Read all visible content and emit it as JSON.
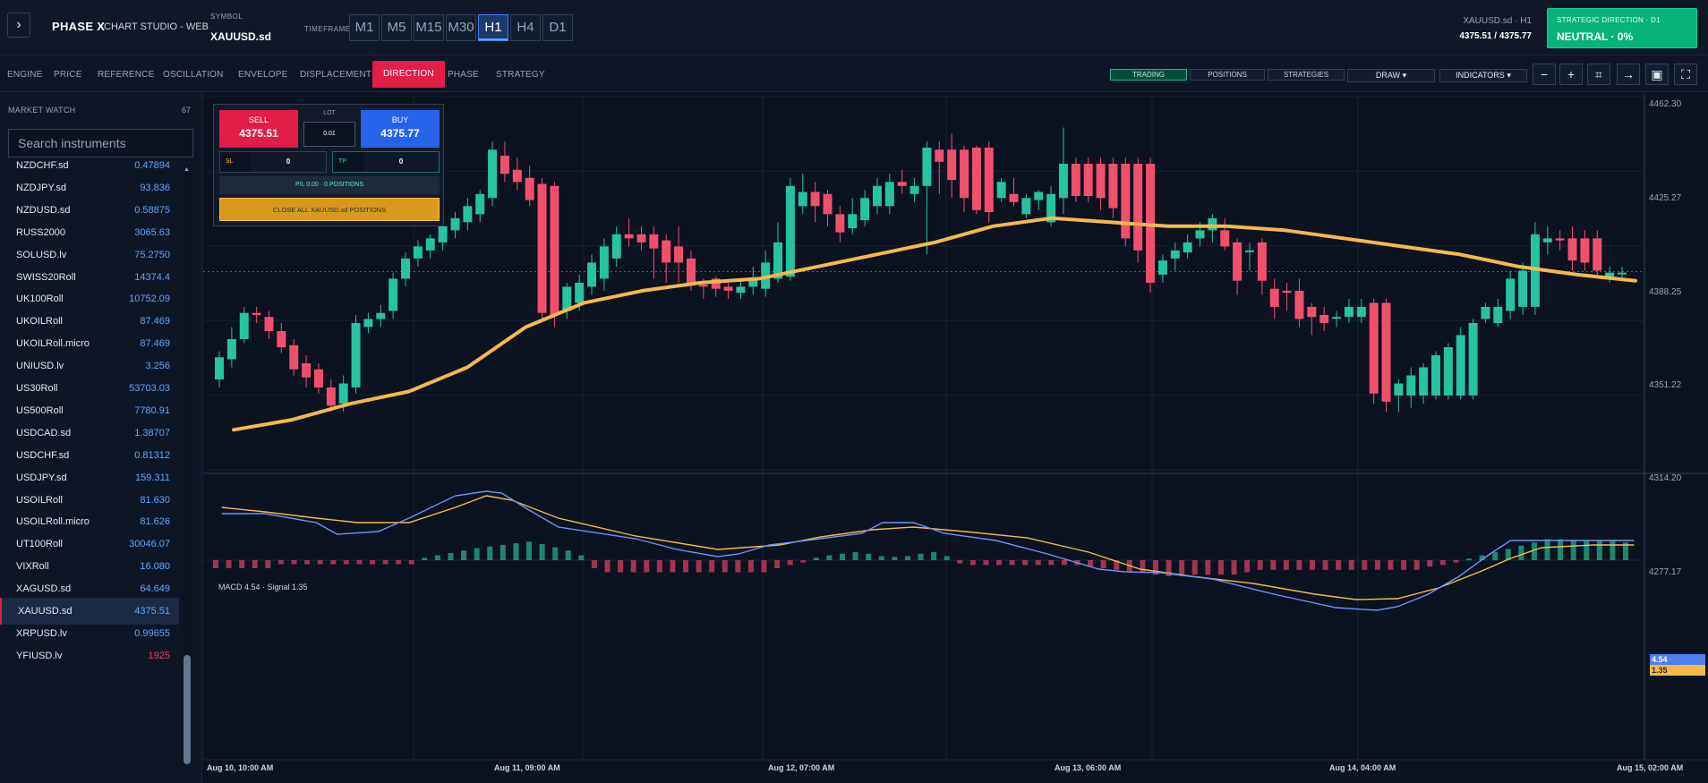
{
  "header": {
    "brand": "PHASE X",
    "subtitle": "CHART STUDIO - WEB",
    "symbol_label": "SYMBOL",
    "symbol": "XAUUSD.sd",
    "timeframe_label": "TIMEFRAME",
    "timeframes": [
      "M1",
      "M5",
      "M15",
      "M30",
      "H1",
      "H4",
      "D1"
    ],
    "active_timeframe": "H1",
    "symbol_desc": "XAUUSD.sd · H1",
    "bid_ask": "4375.51 / 4375.77",
    "strategic_label": "STRATEGIC DIRECTION · D1",
    "strategic_value": "NEUTRAL · 0%"
  },
  "nav": {
    "items": [
      "ENGINE",
      "PRICE",
      "REFERENCE",
      "OSCILLATION",
      "ENVELOPE",
      "DISPLACEMENT",
      "DIRECTION",
      "PHASE",
      "STRATEGY"
    ],
    "active": "DIRECTION",
    "trading": "TRADING",
    "positions": "POSITIONS",
    "strategies": "STRATEGIES",
    "draw": "DRAW",
    "indicators": "INDICATORS",
    "tool_icons": [
      "minus-icon",
      "plus-icon",
      "crop-icon",
      "arrow-right-icon",
      "save-icon",
      "fullscreen-icon"
    ]
  },
  "sidebar": {
    "title": "MARKET WATCH",
    "count": "67",
    "search_placeholder": "Search instruments",
    "instruments": [
      {
        "name": "NZDCHF.sd",
        "price": "0.47894"
      },
      {
        "name": "NZDJPY.sd",
        "price": "93.836"
      },
      {
        "name": "NZDUSD.sd",
        "price": "0.58875"
      },
      {
        "name": "RUSS2000",
        "price": "3065.63"
      },
      {
        "name": "SOLUSD.lv",
        "price": "75.2750"
      },
      {
        "name": "SWISS20Roll",
        "price": "14374.4"
      },
      {
        "name": "UK100Roll",
        "price": "10752.09"
      },
      {
        "name": "UKOILRoll",
        "price": "87.469"
      },
      {
        "name": "UKOILRoll.micro",
        "price": "87.469"
      },
      {
        "name": "UNIUSD.lv",
        "price": "3.256"
      },
      {
        "name": "US30Roll",
        "price": "53703.03"
      },
      {
        "name": "US500Roll",
        "price": "7780.91"
      },
      {
        "name": "USDCAD.sd",
        "price": "1.38707"
      },
      {
        "name": "USDCHF.sd",
        "price": "0.81312"
      },
      {
        "name": "USDJPY.sd",
        "price": "159.311"
      },
      {
        "name": "USOILRoll",
        "price": "81.630"
      },
      {
        "name": "USOILRoll.micro",
        "price": "81.626"
      },
      {
        "name": "UT100Roll",
        "price": "30046.07"
      },
      {
        "name": "VIXRoll",
        "price": "16.080"
      },
      {
        "name": "XAGUSD.sd",
        "price": "64.649"
      },
      {
        "name": "XAUUSD.sd",
        "price": "4375.51"
      },
      {
        "name": "XRPUSD.lv",
        "price": "0.99655"
      },
      {
        "name": "YFIUSD.lv",
        "price": "1925"
      }
    ],
    "selected_index": 20
  },
  "trade_panel": {
    "sell_label": "SELL",
    "sell_price": "4375.51",
    "buy_label": "BUY",
    "buy_price": "4375.77",
    "lot_label": "LOT",
    "lot_value": "0.01",
    "sl_label": "SL",
    "sl_value": "0",
    "tp_label": "TP",
    "tp_value": "0",
    "pl_text": "P/L 0.00 · 0 POSITIONS",
    "close_all": "CLOSE ALL XAUUSD.sd POSITIONS"
  },
  "chart_data": {
    "type": "candlestick",
    "ylim": [
      4277.17,
      4462.3
    ],
    "y_ticks": [
      "4462.30",
      "4425.27",
      "4388.25",
      "4351.22",
      "4314.20",
      "4277.17"
    ],
    "x_ticks": [
      "Aug 10, 10:00 AM",
      "Aug 11, 09:00 AM",
      "Aug 12, 07:00 AM",
      "Aug 13, 06:00 AM",
      "Aug 14, 04:00 AM",
      "Aug 15, 02:00 AM"
    ],
    "current_price": 4375.51,
    "colors": {
      "up": "#26c3a0",
      "down": "#f0506e",
      "ma": "#f5b94a"
    },
    "candles": [
      [
        4322,
        4333,
        4318,
        4336
      ],
      [
        4332,
        4342,
        4328,
        4348
      ],
      [
        4342,
        4355,
        4340,
        4358
      ],
      [
        4355,
        4354,
        4350,
        4358
      ],
      [
        4353,
        4346,
        4342,
        4356
      ],
      [
        4346,
        4338,
        4335,
        4350
      ],
      [
        4339,
        4327,
        4324,
        4342
      ],
      [
        4330,
        4323,
        4318,
        4334
      ],
      [
        4327,
        4318,
        4315,
        4330
      ],
      [
        4318,
        4309,
        4306,
        4322
      ],
      [
        4310,
        4320,
        4306,
        4324
      ],
      [
        4318,
        4350,
        4315,
        4354
      ],
      [
        4348,
        4352,
        4345,
        4355
      ],
      [
        4352,
        4355,
        4348,
        4359
      ],
      [
        4356,
        4372,
        4352,
        4375
      ],
      [
        4372,
        4382,
        4368,
        4385
      ],
      [
        4382,
        4388,
        4378,
        4391
      ],
      [
        4386,
        4392,
        4382,
        4394
      ],
      [
        4390,
        4398,
        4386,
        4400
      ],
      [
        4396,
        4402,
        4392,
        4405
      ],
      [
        4400,
        4408,
        4396,
        4412
      ],
      [
        4404,
        4414,
        4400,
        4416
      ],
      [
        4412,
        4436,
        4408,
        4440
      ],
      [
        4433,
        4424,
        4420,
        4440
      ],
      [
        4426,
        4420,
        4416,
        4432
      ],
      [
        4422,
        4411,
        4408,
        4428
      ],
      [
        4419,
        4355,
        4352,
        4422
      ],
      [
        4418,
        4354,
        4348,
        4420
      ],
      [
        4356,
        4368,
        4352,
        4370
      ],
      [
        4360,
        4370,
        4356,
        4374
      ],
      [
        4368,
        4380,
        4364,
        4384
      ],
      [
        4372,
        4388,
        4366,
        4392
      ],
      [
        4382,
        4394,
        4378,
        4398
      ],
      [
        4394,
        4392,
        4388,
        4402
      ],
      [
        4394,
        4390,
        4386,
        4398
      ],
      [
        4394,
        4387,
        4372,
        4398
      ],
      [
        4391,
        4380,
        4370,
        4394
      ],
      [
        4388,
        4380,
        4370,
        4398
      ],
      [
        4382,
        4369,
        4366,
        4386
      ],
      [
        4369,
        4368,
        4362,
        4372
      ],
      [
        4372,
        4367,
        4363,
        4373
      ],
      [
        4368,
        4366,
        4362,
        4370
      ],
      [
        4365,
        4368,
        4362,
        4372
      ],
      [
        4368,
        4372,
        4364,
        4378
      ],
      [
        4367,
        4380,
        4363,
        4386
      ],
      [
        4372,
        4390,
        4370,
        4400
      ],
      [
        4373,
        4418,
        4371,
        4422
      ],
      [
        4408,
        4415,
        4404,
        4424
      ],
      [
        4415,
        4408,
        4400,
        4420
      ],
      [
        4414,
        4404,
        4398,
        4416
      ],
      [
        4404,
        4395,
        4390,
        4408
      ],
      [
        4397,
        4404,
        4394,
        4412
      ],
      [
        4401,
        4412,
        4398,
        4416
      ],
      [
        4408,
        4418,
        4404,
        4422
      ],
      [
        4408,
        4420,
        4404,
        4424
      ],
      [
        4420,
        4418,
        4414,
        4426
      ],
      [
        4414,
        4418,
        4410,
        4422
      ],
      [
        4418,
        4437,
        4384,
        4440
      ],
      [
        4436,
        4430,
        4414,
        4440
      ],
      [
        4436,
        4421,
        4412,
        4444
      ],
      [
        4436,
        4412,
        4405,
        4438
      ],
      [
        4437,
        4406,
        4404,
        4438
      ],
      [
        4437,
        4405,
        4400,
        4440
      ],
      [
        4412,
        4420,
        4410,
        4422
      ],
      [
        4414,
        4410,
        4408,
        4422
      ],
      [
        4404,
        4412,
        4402,
        4414
      ],
      [
        4411,
        4415,
        4406,
        4416
      ],
      [
        4400,
        4414,
        4398,
        4418
      ],
      [
        4412,
        4429,
        4404,
        4447
      ],
      [
        4429,
        4413,
        4410,
        4432
      ],
      [
        4429,
        4413,
        4410,
        4432
      ],
      [
        4429,
        4412,
        4406,
        4432
      ],
      [
        4429,
        4407,
        4402,
        4432
      ],
      [
        4429,
        4392,
        4388,
        4432
      ],
      [
        4429,
        4386,
        4380,
        4432
      ],
      [
        4429,
        4370,
        4365,
        4432
      ],
      [
        4374,
        4381,
        4370,
        4384
      ],
      [
        4382,
        4386,
        4376,
        4390
      ],
      [
        4385,
        4390,
        4382,
        4394
      ],
      [
        4392,
        4396,
        4388,
        4400
      ],
      [
        4396,
        4402,
        4390,
        4404
      ],
      [
        4396,
        4388,
        4386,
        4402
      ],
      [
        4390,
        4371,
        4364,
        4392
      ],
      [
        4386,
        4386,
        4376,
        4390
      ],
      [
        4390,
        4371,
        4364,
        4392
      ],
      [
        4367,
        4358,
        4352,
        4372
      ],
      [
        4366,
        4365,
        4356,
        4370
      ],
      [
        4366,
        4352,
        4348,
        4372
      ],
      [
        4358,
        4353,
        4344,
        4360
      ],
      [
        4354,
        4350,
        4346,
        4358
      ],
      [
        4353,
        4353,
        4348,
        4356
      ],
      [
        4353,
        4358,
        4350,
        4362
      ],
      [
        4353,
        4358,
        4350,
        4362
      ],
      [
        4360,
        4315,
        4310,
        4362
      ],
      [
        4360,
        4311,
        4306,
        4362
      ],
      [
        4314,
        4320,
        4306,
        4322
      ],
      [
        4314,
        4324,
        4308,
        4328
      ],
      [
        4314,
        4328,
        4310,
        4330
      ],
      [
        4314,
        4334,
        4312,
        4336
      ],
      [
        4314,
        4338,
        4312,
        4340
      ],
      [
        4314,
        4344,
        4312,
        4348
      ],
      [
        4314,
        4350,
        4312,
        4352
      ],
      [
        4352,
        4358,
        4350,
        4360
      ],
      [
        4350,
        4358,
        4348,
        4362
      ],
      [
        4356,
        4372,
        4352,
        4376
      ],
      [
        4358,
        4376,
        4354,
        4380
      ],
      [
        4358,
        4394,
        4354,
        4400
      ],
      [
        4390,
        4392,
        4384,
        4398
      ],
      [
        4392,
        4391,
        4386,
        4396
      ],
      [
        4392,
        4381,
        4376,
        4398
      ],
      [
        4392,
        4380,
        4376,
        4396
      ],
      [
        4392,
        4376,
        4372,
        4396
      ],
      [
        4373,
        4375,
        4370,
        4378
      ],
      [
        4375,
        4375,
        4372,
        4378
      ]
    ],
    "ma": [
      4297,
      4302,
      4310,
      4316,
      4328,
      4348,
      4360,
      4366,
      4370,
      4372,
      4378,
      4384,
      4390,
      4398,
      4402,
      4400,
      4398,
      4398,
      4396,
      4392,
      4388,
      4384,
      4378,
      4374,
      4371
    ],
    "macd": {
      "label": "MACD",
      "title": "MACD 4.54 · Signal 1.35",
      "macd_value": "4.54",
      "signal_value": "1.35",
      "macd_color": "#6f93f6",
      "signal_color": "#f5b94a"
    }
  }
}
